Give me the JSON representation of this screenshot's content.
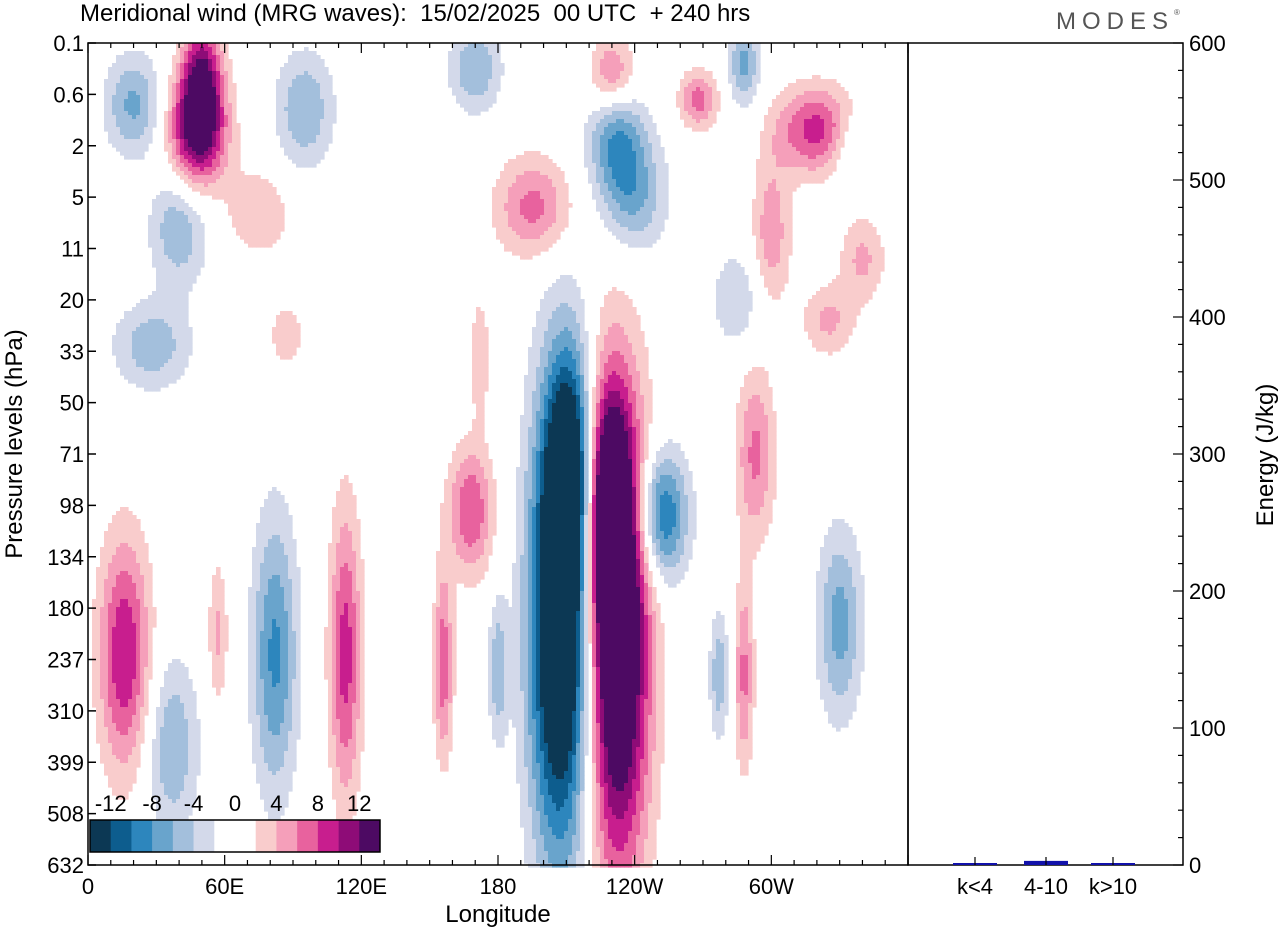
{
  "header": {
    "title": "Meridional wind (MRG waves):  15/02/2025  00 UTC  + 240 hrs",
    "logo": "MODES",
    "logo_mark": "®"
  },
  "chart_data": [
    {
      "type": "heatmap",
      "title": "Meridional wind (MRG waves):  15/02/2025  00 UTC  + 240 hrs",
      "xlabel": "Longitude",
      "ylabel": "Pressure levels (hPa)",
      "x_ticks": [
        "0",
        "60E",
        "120E",
        "180",
        "120W",
        "60W"
      ],
      "y_ticks": [
        "0.1",
        "0.6",
        "2",
        "5",
        "11",
        "20",
        "33",
        "50",
        "71",
        "98",
        "134",
        "180",
        "237",
        "310",
        "399",
        "508",
        "632"
      ],
      "colorbar": {
        "labels": [
          "-12",
          "-8",
          "-4",
          "0",
          "4",
          "8",
          "12"
        ],
        "colors": [
          "#0c3854",
          "#0d5d8e",
          "#2d86bd",
          "#69a4cc",
          "#a3bfdc",
          "#d3d9ea",
          "#ffffff",
          "#ffffff",
          "#f9cccc",
          "#f59fba",
          "#e8629e",
          "#c81e8e",
          "#8e0c77",
          "#4d0a63"
        ]
      },
      "features": [
        {
          "sign": -1,
          "lon": 208,
          "lev": 11.3,
          "amp": 20,
          "rx": 10,
          "ry": 3.2
        },
        {
          "sign": 1,
          "lon": 232,
          "lev": 11.5,
          "amp": 20,
          "rx": 10,
          "ry": 3.2
        },
        {
          "sign": -1,
          "lon": 212,
          "lev": 8.3,
          "amp": 11,
          "rx": 7,
          "ry": 1.6
        },
        {
          "sign": 1,
          "lon": 228,
          "lev": 9.0,
          "amp": 12,
          "rx": 7,
          "ry": 1.6
        },
        {
          "sign": -1,
          "lon": 252,
          "lev": 9.2,
          "amp": 11,
          "rx": 8,
          "ry": 0.9
        },
        {
          "sign": 1,
          "lon": 16,
          "lev": 11.9,
          "amp": 10,
          "rx": 8,
          "ry": 1.6
        },
        {
          "sign": -1,
          "lon": 82,
          "lev": 11.9,
          "amp": 8.5,
          "rx": 7,
          "ry": 1.9
        },
        {
          "sign": 1,
          "lon": 113,
          "lev": 11.9,
          "amp": 9,
          "rx": 5,
          "ry": 2.0
        },
        {
          "sign": 1,
          "lon": 156,
          "lev": 12.1,
          "amp": 7.5,
          "rx": 3,
          "ry": 1.3
        },
        {
          "sign": -1,
          "lon": 180,
          "lev": 12.2,
          "amp": 5.5,
          "rx": 3,
          "ry": 1.0
        },
        {
          "sign": -1,
          "lon": 37,
          "lev": 13.7,
          "amp": 6,
          "rx": 8,
          "ry": 1.2
        },
        {
          "sign": -1,
          "lon": 277,
          "lev": 12.3,
          "amp": 5.5,
          "rx": 3,
          "ry": 0.9
        },
        {
          "sign": 1,
          "lon": 288,
          "lev": 12.3,
          "amp": 6.5,
          "rx": 3,
          "ry": 1.3
        },
        {
          "sign": -1,
          "lon": 330,
          "lev": 11.3,
          "amp": 7,
          "rx": 7,
          "ry": 1.3
        },
        {
          "sign": 1,
          "lon": 57,
          "lev": 11.5,
          "amp": 4.5,
          "rx": 3,
          "ry": 1.0
        },
        {
          "sign": 1,
          "lon": 293,
          "lev": 8.0,
          "amp": 6.5,
          "rx": 6,
          "ry": 1.2
        },
        {
          "sign": 1,
          "lon": 168,
          "lev": 9.1,
          "amp": 8,
          "rx": 7,
          "ry": 0.9
        },
        {
          "sign": 1,
          "lon": 48,
          "lev": 1.7,
          "amp": 13.5,
          "rx": 9,
          "ry": 0.8
        },
        {
          "sign": 1,
          "lon": 50,
          "lev": 0.6,
          "amp": 10,
          "rx": 6,
          "ry": 0.8
        },
        {
          "sign": -1,
          "lon": 20,
          "lev": 1.2,
          "amp": 6.5,
          "rx": 9,
          "ry": 0.7
        },
        {
          "sign": -1,
          "lon": 95,
          "lev": 1.3,
          "amp": 6,
          "rx": 9,
          "ry": 0.8
        },
        {
          "sign": -1,
          "lon": 170,
          "lev": 0.5,
          "amp": 6,
          "rx": 8,
          "ry": 0.6
        },
        {
          "sign": -1,
          "lon": 232,
          "lev": 1.9,
          "amp": 7.5,
          "rx": 9,
          "ry": 0.8
        },
        {
          "sign": -1,
          "lon": 240,
          "lev": 3.0,
          "amp": 6,
          "rx": 10,
          "ry": 0.8
        },
        {
          "sign": 1,
          "lon": 196,
          "lev": 3.2,
          "amp": 7,
          "rx": 12,
          "ry": 0.7
        },
        {
          "sign": 1,
          "lon": 230,
          "lev": 0.6,
          "amp": 7,
          "rx": 7,
          "ry": 0.5
        },
        {
          "sign": 1,
          "lon": 268,
          "lev": 1.1,
          "amp": 7,
          "rx": 6,
          "ry": 0.4
        },
        {
          "sign": 1,
          "lon": 320,
          "lev": 1.7,
          "amp": 9,
          "rx": 13,
          "ry": 0.6
        },
        {
          "sign": -1,
          "lon": 288,
          "lev": 0.4,
          "amp": 6.5,
          "rx": 5,
          "ry": 0.6
        },
        {
          "sign": -1,
          "lon": 335,
          "lev": 2.0,
          "amp": 4.5,
          "rx": 6,
          "ry": 0.5
        },
        {
          "sign": -1,
          "lon": 40,
          "lev": 3.6,
          "amp": 6,
          "rx": 9,
          "ry": 0.8
        },
        {
          "sign": -1,
          "lon": 28,
          "lev": 5.9,
          "amp": 5.5,
          "rx": 12,
          "ry": 0.6
        },
        {
          "sign": 1,
          "lon": 300,
          "lev": 3.7,
          "amp": 5.5,
          "rx": 6,
          "ry": 1.0
        },
        {
          "sign": 1,
          "lon": 340,
          "lev": 4.2,
          "amp": 4.5,
          "rx": 7,
          "ry": 0.6
        },
        {
          "sign": 1,
          "lon": 325,
          "lev": 5.4,
          "amp": 4.5,
          "rx": 8,
          "ry": 0.5
        },
        {
          "sign": -1,
          "lon": 285,
          "lev": 5.0,
          "amp": 4,
          "rx": 8,
          "ry": 0.7
        },
        {
          "sign": 1,
          "lon": 75,
          "lev": 3.3,
          "amp": 4,
          "rx": 10,
          "ry": 0.6
        },
        {
          "sign": 1,
          "lon": 172,
          "lev": 6.1,
          "amp": 4,
          "rx": 3,
          "ry": 0.8
        },
        {
          "sign": 1,
          "lon": 87,
          "lev": 5.7,
          "amp": 4,
          "rx": 5,
          "ry": 0.4
        }
      ]
    },
    {
      "type": "bar",
      "ylabel": "Energy (J/kg)",
      "categories": [
        "k<4",
        "4-10",
        "k>10"
      ],
      "values": [
        0.5,
        3,
        0.3
      ],
      "ylim": [
        0,
        600
      ],
      "y_ticks": [
        0,
        100,
        200,
        300,
        400,
        500,
        600
      ],
      "bar_color": "#1111aa"
    }
  ]
}
